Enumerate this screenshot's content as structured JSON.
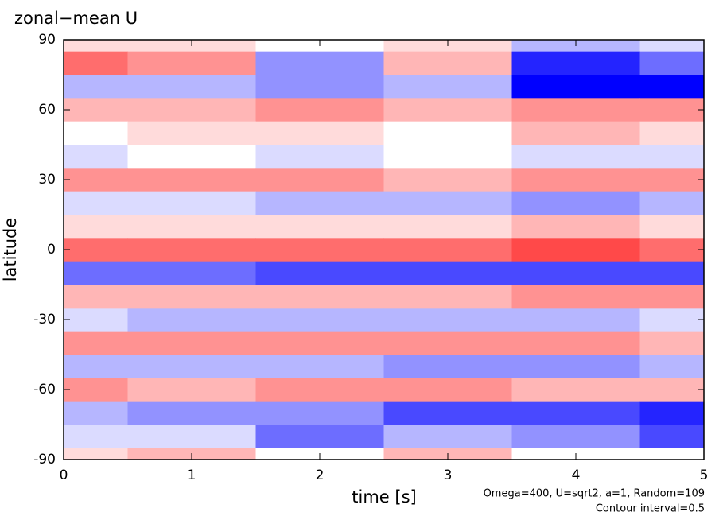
{
  "chart_data": {
    "type": "heatmap",
    "title": "zonal−mean U",
    "x_label": "time [s]",
    "y_label": "latitude",
    "annotations": [
      "Omega=400, U=sqrt2, a=1, Random=109",
      "Contour interval=0.5"
    ],
    "x": [
      0,
      1,
      2,
      3,
      4,
      5
    ],
    "y": [
      90,
      80,
      70,
      60,
      50,
      40,
      30,
      20,
      10,
      0,
      -10,
      -20,
      -30,
      -40,
      -50,
      -60,
      -70,
      -80,
      -90
    ],
    "z": [
      [
        1,
        1,
        0,
        1,
        -2,
        -1
      ],
      [
        4,
        3,
        -3,
        2,
        -6,
        -4
      ],
      [
        -2,
        -2,
        -3,
        -2,
        -7,
        -7
      ],
      [
        2,
        2,
        3,
        2,
        3,
        3
      ],
      [
        0,
        1,
        1,
        0,
        2,
        1
      ],
      [
        -1,
        0,
        -1,
        0,
        -1,
        -1
      ],
      [
        3,
        3,
        3,
        2,
        3,
        3
      ],
      [
        -1,
        -1,
        -2,
        -2,
        -3,
        -2
      ],
      [
        1,
        1,
        1,
        1,
        2,
        1
      ],
      [
        4,
        4,
        4,
        4,
        5,
        4
      ],
      [
        -4,
        -4,
        -5,
        -5,
        -5,
        -5
      ],
      [
        2,
        2,
        2,
        2,
        3,
        3
      ],
      [
        -1,
        -2,
        -2,
        -2,
        -2,
        -1
      ],
      [
        3,
        3,
        3,
        3,
        3,
        2
      ],
      [
        -2,
        -2,
        -2,
        -3,
        -3,
        -2
      ],
      [
        3,
        2,
        3,
        3,
        2,
        2
      ],
      [
        -2,
        -3,
        -3,
        -5,
        -5,
        -6
      ],
      [
        -1,
        -1,
        -4,
        -2,
        -3,
        -5
      ],
      [
        1,
        2,
        0,
        2,
        0,
        0
      ]
    ],
    "positive_color": "#ff0000",
    "negative_color": "#0000ff",
    "xlim": [
      0,
      5
    ],
    "ylim": [
      -90,
      90
    ],
    "xticks": [
      0,
      1,
      2,
      3,
      4,
      5
    ],
    "yticks": [
      -90,
      -60,
      -30,
      0,
      30,
      60,
      90
    ]
  }
}
